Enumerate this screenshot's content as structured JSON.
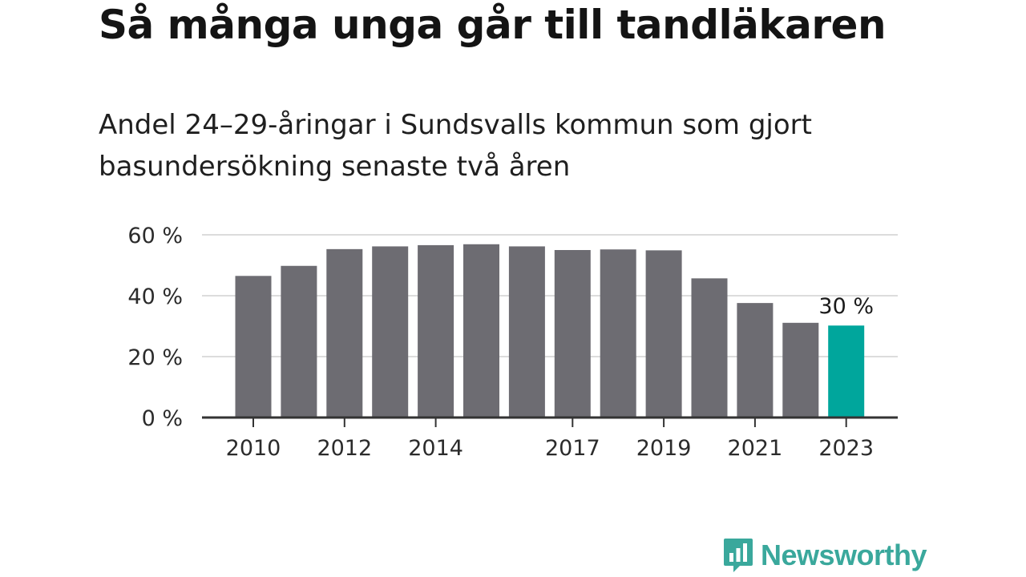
{
  "title": "Så många unga går till tandläkaren",
  "subtitle": "Andel 24–29-åringar i Sundsvalls kommun som gjort basundersökning senaste två åren",
  "brand": {
    "name": "Newsworthy",
    "color": "#3aa89c",
    "icon": "bar-chart-speech-bubble-icon"
  },
  "chart_data": {
    "type": "bar",
    "categories": [
      "2010",
      "2011",
      "2012",
      "2013",
      "2014",
      "2015",
      "2016",
      "2017",
      "2018",
      "2019",
      "2020",
      "2021",
      "2022",
      "2023"
    ],
    "values": [
      46.5,
      49.8,
      55.3,
      56.2,
      56.6,
      56.9,
      56.2,
      55.0,
      55.2,
      54.9,
      45.7,
      37.6,
      31.1,
      30.2
    ],
    "xtick_labels": [
      "2010",
      "2012",
      "2014",
      "2017",
      "2019",
      "2021",
      "2023"
    ],
    "ylim": [
      0,
      60
    ],
    "yticks": [
      0,
      20,
      40,
      60
    ],
    "ytick_labels": [
      "0 %",
      "20 %",
      "40 %",
      "60 %"
    ],
    "annotations": [
      {
        "category": "2023",
        "text": "30 %"
      }
    ],
    "grid": true,
    "bar_color": "#6d6c72",
    "highlight_color": "#00a69c",
    "highlight_index": 13,
    "grid_color": "#dcdcdc",
    "axis_color": "#333333"
  }
}
